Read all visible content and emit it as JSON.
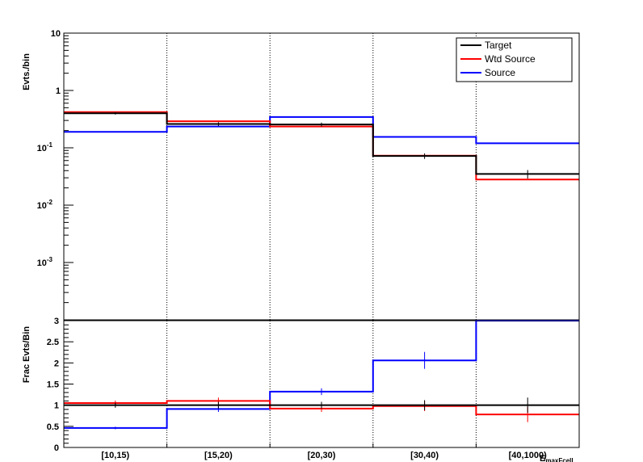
{
  "chart_data": [
    {
      "type": "line",
      "subtype": "step-histogram",
      "ylabel": "Evts./bin",
      "yscale": "log",
      "ylim": [
        0.0001,
        10
      ],
      "y_tick_labels": [
        "10",
        "1",
        "10^-1",
        "10^-2",
        "10^-3"
      ],
      "categories": [
        "[10,15)",
        "[15,20)",
        "[20,30)",
        "[30,40)",
        "[40,1000)"
      ],
      "legend": {
        "placement": "top-right",
        "entries": [
          "Target",
          "Wtd Source",
          "Source"
        ]
      },
      "series": [
        {
          "name": "Target",
          "color": "#000000",
          "values": [
            0.4,
            0.26,
            0.255,
            0.072,
            0.035
          ],
          "errors": [
            0.02,
            0.02,
            0.02,
            0.008,
            0.006
          ]
        },
        {
          "name": "Wtd Source",
          "color": "#ff0000",
          "values": [
            0.42,
            0.29,
            0.235,
            0.073,
            0.028
          ]
        },
        {
          "name": "Source",
          "color": "#0000ff",
          "values": [
            0.19,
            0.235,
            0.345,
            0.155,
            0.12
          ]
        }
      ],
      "grid": "vertical dotted at bin edges"
    },
    {
      "type": "line",
      "subtype": "step-histogram",
      "ylabel": "Frac Evts/Bin",
      "xlabel": "E_maxFcell",
      "ylim": [
        0,
        3
      ],
      "y_ticks": [
        0,
        0.5,
        1,
        1.5,
        2,
        2.5,
        3
      ],
      "y_tick_labels": [
        "0",
        "0.5",
        "1",
        "1.5",
        "2",
        "2.5",
        "3"
      ],
      "categories": [
        "[10,15)",
        "[15,20)",
        "[20,30)",
        "[30,40)",
        "[40,1000)"
      ],
      "series": [
        {
          "name": "Target",
          "color": "#000000",
          "values": [
            1.0,
            1.0,
            1.0,
            1.0,
            1.0
          ],
          "errors": [
            0.06,
            0.08,
            0.08,
            0.12,
            0.18
          ]
        },
        {
          "name": "Wtd Source",
          "color": "#ff0000",
          "values": [
            1.05,
            1.1,
            0.92,
            0.98,
            0.78
          ],
          "errors": [
            0.06,
            0.08,
            0.08,
            0.12,
            0.18
          ]
        },
        {
          "name": "Source",
          "color": "#0000ff",
          "values": [
            0.46,
            0.91,
            1.32,
            2.06,
            3.0
          ],
          "errors": [
            0.03,
            0.07,
            0.08,
            0.2,
            0.0
          ]
        }
      ],
      "grid": "vertical dotted at bin edges"
    }
  ]
}
